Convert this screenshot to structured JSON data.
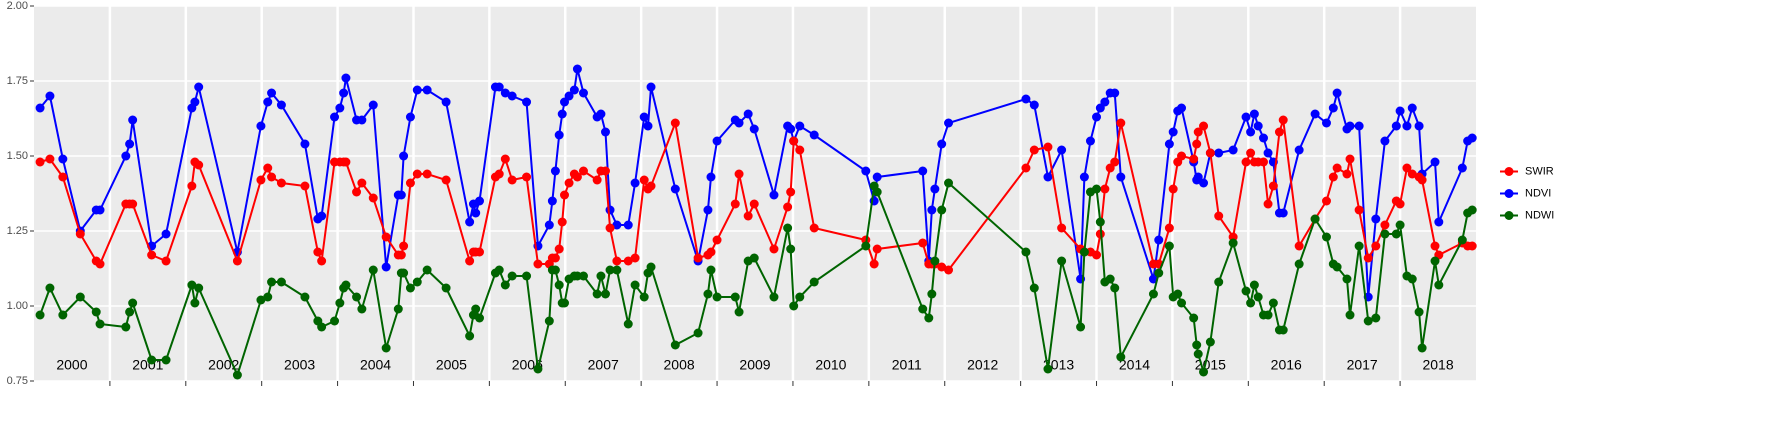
{
  "chart_data": {
    "type": "line",
    "x": [
      2000.08,
      2000.21,
      2000.38,
      2000.61,
      2000.82,
      2000.87,
      2001.21,
      2001.26,
      2001.3,
      2001.55,
      2001.74,
      2002.08,
      2002.12,
      2002.17,
      2002.68,
      2002.99,
      2003.08,
      2003.13,
      2003.26,
      2003.57,
      2003.74,
      2003.79,
      2003.96,
      2004.03,
      2004.08,
      2004.11,
      2004.25,
      2004.32,
      2004.47,
      2004.64,
      2004.8,
      2004.84,
      2004.87,
      2004.96,
      2005.05,
      2005.18,
      2005.43,
      2005.74,
      2005.79,
      2005.82,
      2005.87,
      2006.08,
      2006.13,
      2006.21,
      2006.3,
      2006.49,
      2006.64,
      2006.79,
      2006.83,
      2006.87,
      2006.92,
      2006.96,
      2006.99,
      2007.05,
      2007.12,
      2007.16,
      2007.24,
      2007.42,
      2007.47,
      2007.53,
      2007.59,
      2007.68,
      2007.83,
      2007.92,
      2008.04,
      2008.09,
      2008.13,
      2008.45,
      2008.75,
      2008.88,
      2008.92,
      2009.0,
      2009.24,
      2009.29,
      2009.41,
      2009.49,
      2009.75,
      2009.93,
      2009.97,
      2010.01,
      2010.09,
      2010.28,
      2010.96,
      2011.07,
      2011.11,
      2011.71,
      2011.79,
      2011.83,
      2011.87,
      2011.96,
      2012.05,
      2013.07,
      2013.18,
      2013.36,
      2013.54,
      2013.79,
      2013.84,
      2013.92,
      2014.0,
      2014.05,
      2014.11,
      2014.18,
      2014.24,
      2014.32,
      2014.75,
      2014.82,
      2014.96,
      2015.01,
      2015.07,
      2015.12,
      2015.28,
      2015.32,
      2015.34,
      2015.41,
      2015.5,
      2015.61,
      2015.8,
      2015.97,
      2016.03,
      2016.08,
      2016.13,
      2016.2,
      2016.26,
      2016.33,
      2016.41,
      2016.46,
      2016.67,
      2016.88,
      2017.03,
      2017.12,
      2017.17,
      2017.3,
      2017.34,
      2017.46,
      2017.58,
      2017.68,
      2017.8,
      2017.95,
      2018.0,
      2018.09,
      2018.16,
      2018.25,
      2018.29,
      2018.46,
      2018.51,
      2018.82,
      2018.89,
      2018.95
    ],
    "series": [
      {
        "name": "SWIR",
        "color": "#ff0000",
        "values": [
          1.48,
          1.49,
          1.43,
          1.24,
          1.15,
          1.14,
          1.34,
          1.34,
          1.34,
          1.17,
          1.15,
          1.4,
          1.48,
          1.47,
          1.15,
          1.42,
          1.46,
          1.43,
          1.41,
          1.4,
          1.18,
          1.15,
          1.48,
          1.48,
          1.48,
          1.48,
          1.38,
          1.41,
          1.36,
          1.23,
          1.17,
          1.17,
          1.2,
          1.41,
          1.44,
          1.44,
          1.42,
          1.15,
          1.18,
          1.18,
          1.18,
          1.43,
          1.44,
          1.49,
          1.42,
          1.43,
          1.14,
          1.14,
          1.16,
          1.16,
          1.19,
          1.28,
          1.37,
          1.41,
          1.44,
          1.43,
          1.45,
          1.42,
          1.45,
          1.45,
          1.26,
          1.15,
          1.15,
          1.16,
          1.42,
          1.39,
          1.4,
          1.61,
          1.16,
          1.17,
          1.18,
          1.22,
          1.34,
          1.44,
          1.3,
          1.34,
          1.19,
          1.33,
          1.38,
          1.55,
          1.52,
          1.26,
          1.22,
          1.14,
          1.19,
          1.21,
          1.14,
          1.14,
          1.14,
          1.13,
          1.12,
          1.46,
          1.52,
          1.53,
          1.26,
          1.19,
          1.18,
          1.18,
          1.17,
          1.24,
          1.39,
          1.46,
          1.48,
          1.61,
          1.14,
          1.14,
          1.26,
          1.39,
          1.48,
          1.5,
          1.49,
          1.54,
          1.58,
          1.6,
          1.51,
          1.3,
          1.23,
          1.48,
          1.51,
          1.48,
          1.48,
          1.48,
          1.34,
          1.4,
          1.58,
          1.62,
          1.2,
          1.29,
          1.35,
          1.43,
          1.46,
          1.44,
          1.49,
          1.32,
          1.16,
          1.2,
          1.27,
          1.35,
          1.34,
          1.46,
          1.44,
          1.43,
          1.42,
          1.2,
          1.17,
          1.21,
          1.2,
          1.2
        ]
      },
      {
        "name": "NDVI",
        "color": "#0000ff",
        "values": [
          1.66,
          1.7,
          1.49,
          1.25,
          1.32,
          1.32,
          1.5,
          1.54,
          1.62,
          1.2,
          1.24,
          1.66,
          1.68,
          1.73,
          1.18,
          1.6,
          1.68,
          1.71,
          1.67,
          1.54,
          1.29,
          1.3,
          1.63,
          1.66,
          1.71,
          1.76,
          1.62,
          1.62,
          1.67,
          1.13,
          1.37,
          1.37,
          1.5,
          1.63,
          1.72,
          1.72,
          1.68,
          1.28,
          1.34,
          1.31,
          1.35,
          1.73,
          1.73,
          1.71,
          1.7,
          1.68,
          1.2,
          1.27,
          1.35,
          1.45,
          1.57,
          1.64,
          1.68,
          1.7,
          1.72,
          1.79,
          1.71,
          1.63,
          1.64,
          1.58,
          1.32,
          1.27,
          1.27,
          1.41,
          1.63,
          1.6,
          1.73,
          1.39,
          1.15,
          1.32,
          1.43,
          1.55,
          1.62,
          1.61,
          1.64,
          1.59,
          1.37,
          1.6,
          1.59,
          1.55,
          1.6,
          1.57,
          1.45,
          1.35,
          1.43,
          1.45,
          1.15,
          1.32,
          1.39,
          1.54,
          1.61,
          1.69,
          1.67,
          1.43,
          1.52,
          1.09,
          1.43,
          1.55,
          1.63,
          1.66,
          1.68,
          1.71,
          1.71,
          1.43,
          1.09,
          1.22,
          1.54,
          1.58,
          1.65,
          1.66,
          1.48,
          1.42,
          1.43,
          1.41,
          1.51,
          1.51,
          1.52,
          1.63,
          1.58,
          1.64,
          1.6,
          1.56,
          1.51,
          1.48,
          1.31,
          1.31,
          1.52,
          1.64,
          1.61,
          1.66,
          1.71,
          1.59,
          1.6,
          1.6,
          1.03,
          1.29,
          1.55,
          1.6,
          1.65,
          1.6,
          1.66,
          1.6,
          1.44,
          1.48,
          1.28,
          1.46,
          1.55,
          1.56
        ]
      },
      {
        "name": "NDWI",
        "color": "#006400",
        "values": [
          0.97,
          1.06,
          0.97,
          1.03,
          0.98,
          0.94,
          0.93,
          0.98,
          1.01,
          0.82,
          0.82,
          1.07,
          1.01,
          1.06,
          0.77,
          1.02,
          1.03,
          1.08,
          1.08,
          1.03,
          0.95,
          0.93,
          0.95,
          1.01,
          1.06,
          1.07,
          1.03,
          0.99,
          1.12,
          0.86,
          0.99,
          1.11,
          1.11,
          1.06,
          1.08,
          1.12,
          1.06,
          0.9,
          0.97,
          0.99,
          0.96,
          1.11,
          1.12,
          1.07,
          1.1,
          1.1,
          0.79,
          0.95,
          1.12,
          1.12,
          1.07,
          1.01,
          1.01,
          1.09,
          1.1,
          1.1,
          1.1,
          1.04,
          1.1,
          1.04,
          1.12,
          1.12,
          0.94,
          1.07,
          1.03,
          1.11,
          1.13,
          0.87,
          0.91,
          1.04,
          1.12,
          1.03,
          1.03,
          0.98,
          1.15,
          1.16,
          1.03,
          1.26,
          1.19,
          1.0,
          1.03,
          1.08,
          1.2,
          1.4,
          1.38,
          0.99,
          0.96,
          1.04,
          1.15,
          1.32,
          1.41,
          1.18,
          1.06,
          0.79,
          1.15,
          0.93,
          1.18,
          1.38,
          1.39,
          1.28,
          1.08,
          1.09,
          1.06,
          0.83,
          1.04,
          1.11,
          1.2,
          1.03,
          1.04,
          1.01,
          0.96,
          0.87,
          0.84,
          0.78,
          0.88,
          1.08,
          1.21,
          1.05,
          1.01,
          1.07,
          1.03,
          0.97,
          0.97,
          1.01,
          0.92,
          0.92,
          1.14,
          1.29,
          1.23,
          1.14,
          1.13,
          1.09,
          0.97,
          1.2,
          0.95,
          0.96,
          1.24,
          1.24,
          1.27,
          1.1,
          1.09,
          0.98,
          0.86,
          1.15,
          1.07,
          1.22,
          1.31,
          1.32
        ]
      }
    ],
    "xlim": [
      2000,
      2019
    ],
    "xticks": [
      {
        "value": 2000.5,
        "label": "2000"
      },
      {
        "value": 2001.5,
        "label": "2001"
      },
      {
        "value": 2002.5,
        "label": "2002"
      },
      {
        "value": 2003.5,
        "label": "2003"
      },
      {
        "value": 2004.5,
        "label": "2004"
      },
      {
        "value": 2005.5,
        "label": "2005"
      },
      {
        "value": 2006.5,
        "label": "2006"
      },
      {
        "value": 2007.5,
        "label": "2007"
      },
      {
        "value": 2008.5,
        "label": "2008"
      },
      {
        "value": 2009.5,
        "label": "2009"
      },
      {
        "value": 2010.5,
        "label": "2010"
      },
      {
        "value": 2011.5,
        "label": "2011"
      },
      {
        "value": 2012.5,
        "label": "2012"
      },
      {
        "value": 2013.5,
        "label": "2013"
      },
      {
        "value": 2014.5,
        "label": "2014"
      },
      {
        "value": 2015.5,
        "label": "2015"
      },
      {
        "value": 2016.5,
        "label": "2016"
      },
      {
        "value": 2017.5,
        "label": "2017"
      },
      {
        "value": 2018.5,
        "label": "2018"
      }
    ],
    "xgrid": [
      2001,
      2002,
      2003,
      2004,
      2005,
      2006,
      2007,
      2008,
      2009,
      2010,
      2011,
      2012,
      2013,
      2014,
      2015,
      2016,
      2017,
      2018
    ],
    "ylim": [
      0.75,
      2.0
    ],
    "yticks": [
      {
        "value": 0.75,
        "label": "0.75"
      },
      {
        "value": 1.0,
        "label": "1.00"
      },
      {
        "value": 1.25,
        "label": "1.25"
      },
      {
        "value": 1.5,
        "label": "1.50"
      },
      {
        "value": 1.75,
        "label": "1.75"
      },
      {
        "value": 2.0,
        "label": "2.00"
      }
    ],
    "grid": true,
    "legend": "right"
  }
}
